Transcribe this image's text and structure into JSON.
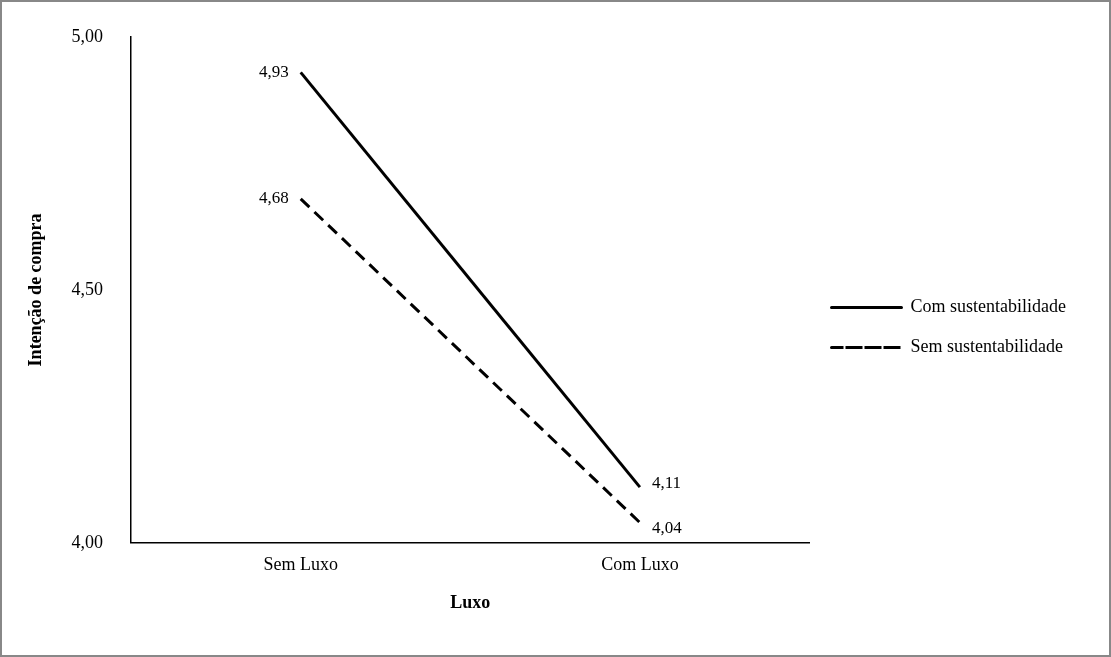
{
  "chart_data": {
    "type": "line",
    "xlabel": "Luxo",
    "ylabel": "Intenção de compra",
    "categories": [
      "Sem Luxo",
      "Com Luxo"
    ],
    "series": [
      {
        "name": "Com sustentabilidade",
        "color": "#000000",
        "values": [
          4.93,
          4.11
        ],
        "value_labels": [
          "4,93",
          "4,11"
        ],
        "line_style": "solid"
      },
      {
        "name": "Sem sustentabilidade",
        "color": "#000000",
        "values": [
          4.68,
          4.04
        ],
        "value_labels": [
          "4,68",
          "4,04"
        ],
        "line_style": "dashed"
      }
    ],
    "ylim": [
      4,
      5
    ],
    "yticks": [
      {
        "value": 4,
        "label": "4,00"
      },
      {
        "value": 4.5,
        "label": "4,50"
      },
      {
        "value": 5,
        "label": "5,00"
      }
    ],
    "grid": false,
    "legend": "right",
    "marker": "none"
  }
}
